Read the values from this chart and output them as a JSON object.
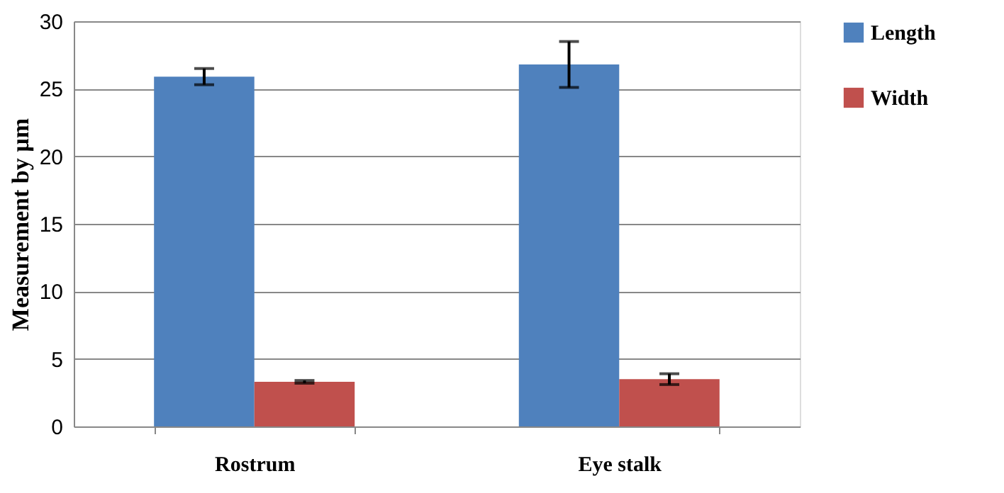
{
  "chart_data": {
    "type": "bar",
    "ylabel": "Measurement by µm",
    "categories": [
      "Rostrum",
      "Eye stalk"
    ],
    "series": [
      {
        "name": "Length",
        "color": "#4f81bd",
        "values": [
          25.9,
          26.8
        ],
        "errors": [
          0.6,
          1.7
        ]
      },
      {
        "name": "Width",
        "color": "#c0504d",
        "values": [
          3.3,
          3.5
        ],
        "errors": [
          0.1,
          0.4
        ]
      }
    ],
    "ylim": [
      0,
      30
    ],
    "yticks": [
      0,
      5,
      10,
      15,
      20,
      25,
      30
    ],
    "grid": "y",
    "legend": "right"
  }
}
